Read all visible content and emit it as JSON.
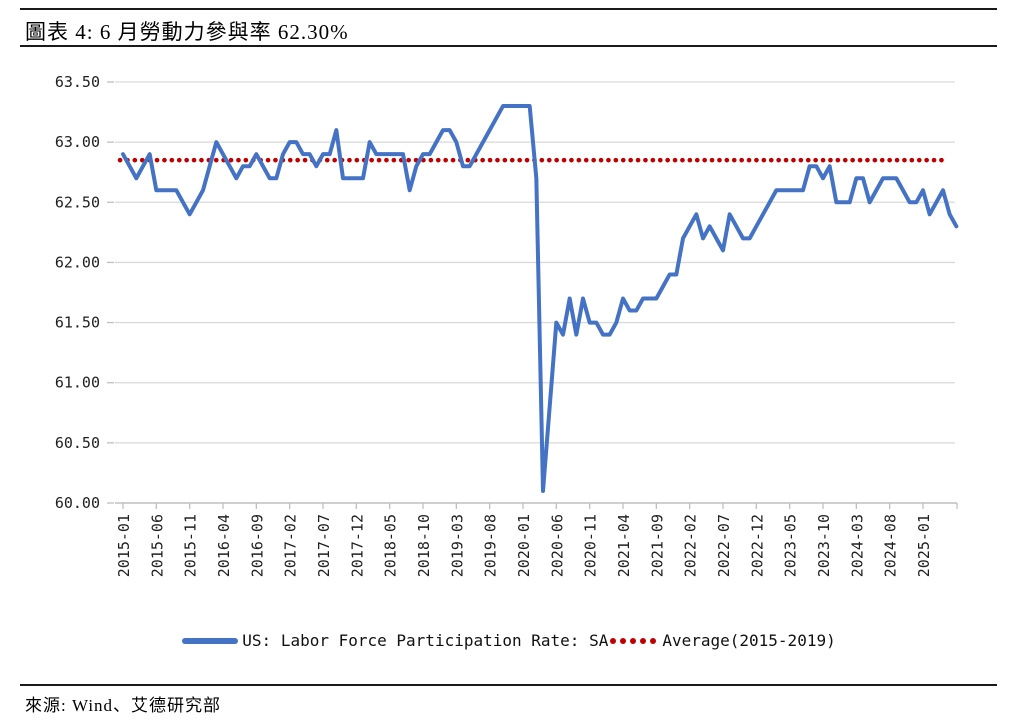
{
  "header": {
    "title": "圖表 4: 6 月勞動力參與率 62.30%"
  },
  "source": {
    "text": "來源: Wind、艾德研究部"
  },
  "colors": {
    "line_blue": "#4472C4",
    "dot_red": "#C00000",
    "grid": "#D9D9D9",
    "axis": "#BFBFBF",
    "label_text": "#1f1f1f",
    "rule": "#1a1a1a"
  },
  "chart_data": {
    "type": "line",
    "title": "圖表 4: 6 月勞動力參與率 62.30%",
    "xlabel": "",
    "ylabel": "",
    "ylim": [
      60.0,
      63.5
    ],
    "y_tick_step": 0.5,
    "y_tick_labels": [
      "63.50",
      "63.00",
      "62.50",
      "62.00",
      "61.50",
      "61.00",
      "60.50",
      "60.00"
    ],
    "x_tick_labels": [
      "2015-01",
      "2015-06",
      "2015-11",
      "2016-04",
      "2016-09",
      "2017-02",
      "2017-07",
      "2017-12",
      "2018-05",
      "2018-10",
      "2019-03",
      "2019-08",
      "2020-01",
      "2020-06",
      "2020-11",
      "2021-04",
      "2021-09",
      "2022-02",
      "2022-07",
      "2022-12",
      "2023-05",
      "2023-10",
      "2024-03",
      "2024-08",
      "2025-01"
    ],
    "x_tick_every_n_months": 5,
    "grid": true,
    "legend_position": "bottom",
    "series": [
      {
        "name": "US: Labor Force Participation Rate: SA",
        "color": "#4472C4",
        "style": "solid",
        "start": "2015-01",
        "end": "2025-06",
        "frequency": "monthly",
        "values": [
          62.9,
          62.8,
          62.7,
          62.8,
          62.9,
          62.6,
          62.6,
          62.6,
          62.6,
          62.5,
          62.4,
          62.5,
          62.6,
          62.8,
          63.0,
          62.9,
          62.8,
          62.7,
          62.8,
          62.8,
          62.9,
          62.8,
          62.7,
          62.7,
          62.9,
          63.0,
          63.0,
          62.9,
          62.9,
          62.8,
          62.9,
          62.9,
          63.1,
          62.7,
          62.7,
          62.7,
          62.7,
          63.0,
          62.9,
          62.9,
          62.9,
          62.9,
          62.9,
          62.6,
          62.8,
          62.9,
          62.9,
          63.0,
          63.1,
          63.1,
          63.0,
          62.8,
          62.8,
          62.9,
          63.0,
          63.1,
          63.2,
          63.3,
          63.3,
          63.3,
          63.3,
          63.3,
          62.7,
          60.1,
          60.8,
          61.5,
          61.4,
          61.7,
          61.4,
          61.7,
          61.5,
          61.5,
          61.4,
          61.4,
          61.5,
          61.7,
          61.6,
          61.6,
          61.7,
          61.7,
          61.7,
          61.8,
          61.9,
          61.9,
          62.2,
          62.3,
          62.4,
          62.2,
          62.3,
          62.2,
          62.1,
          62.4,
          62.3,
          62.2,
          62.2,
          62.3,
          62.4,
          62.5,
          62.6,
          62.6,
          62.6,
          62.6,
          62.6,
          62.8,
          62.8,
          62.7,
          62.8,
          62.5,
          62.5,
          62.5,
          62.7,
          62.7,
          62.5,
          62.6,
          62.7,
          62.7,
          62.7,
          62.6,
          62.5,
          62.5,
          62.6,
          62.4,
          62.5,
          62.6,
          62.4,
          62.3
        ]
      },
      {
        "name": "Average(2015-2019)",
        "color": "#C00000",
        "style": "dotted",
        "value": 62.85
      }
    ]
  }
}
